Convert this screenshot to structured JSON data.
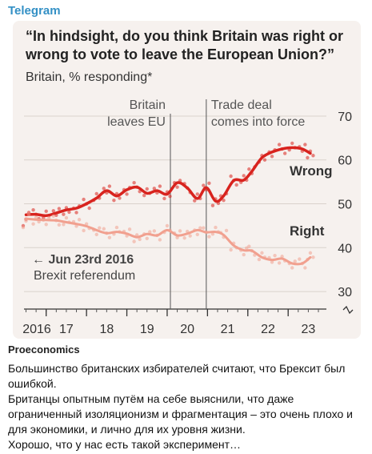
{
  "app": {
    "channel_label": "Telegram"
  },
  "chart_card": {
    "title_line1": "“In hindsight, do you think Britain was right or",
    "title_line2": "wrong to vote to leave the European Union?”",
    "subtitle": "Britain, % responding*"
  },
  "chart_data": {
    "type": "line",
    "title": "“In hindsight, do you think Britain was right or wrong to vote to leave the European Union?”",
    "subtitle": "Britain, % responding*",
    "x_tick_labels": [
      "2016",
      "17",
      "18",
      "19",
      "20",
      "21",
      "22",
      "23"
    ],
    "x_ticks_years": [
      2016,
      2017,
      2018,
      2019,
      2020,
      2021,
      2022,
      2023
    ],
    "xlim": [
      2016.45,
      2023.75
    ],
    "y_ticks": [
      30,
      40,
      50,
      60,
      70
    ],
    "ylim": [
      26,
      72
    ],
    "annotations": [
      {
        "id": "brexit_leave",
        "x": 2020.08,
        "lines": [
          "Britain",
          "leaves EU"
        ]
      },
      {
        "id": "trade_deal",
        "x": 2020.97,
        "lines": [
          "Trade deal",
          "comes into force"
        ]
      }
    ],
    "referendum_note": {
      "line1": "← Jun 23rd 2016",
      "line2": "Brexit referendum"
    },
    "series": [
      {
        "name": "Wrong",
        "color": "#d8231e",
        "points": [
          [
            2016.5,
            47.5
          ],
          [
            2016.75,
            47.6
          ],
          [
            2017.0,
            47.3
          ],
          [
            2017.25,
            47.9
          ],
          [
            2017.5,
            48.6
          ],
          [
            2017.75,
            49.0
          ],
          [
            2018.0,
            50.0
          ],
          [
            2018.25,
            51.3
          ],
          [
            2018.5,
            53.0
          ],
          [
            2018.75,
            51.8
          ],
          [
            2019.0,
            53.2
          ],
          [
            2019.25,
            53.8
          ],
          [
            2019.5,
            52.4
          ],
          [
            2019.75,
            53.0
          ],
          [
            2020.0,
            52.2
          ],
          [
            2020.25,
            54.8
          ],
          [
            2020.5,
            53.6
          ],
          [
            2020.75,
            51.2
          ],
          [
            2020.97,
            53.7
          ],
          [
            2021.2,
            50.6
          ],
          [
            2021.4,
            51.8
          ],
          [
            2021.65,
            55.3
          ],
          [
            2021.9,
            55.4
          ],
          [
            2022.1,
            57.4
          ],
          [
            2022.35,
            60.5
          ],
          [
            2022.6,
            61.8
          ],
          [
            2022.85,
            62.5
          ],
          [
            2023.1,
            62.8
          ],
          [
            2023.35,
            62.5
          ],
          [
            2023.55,
            61.5
          ]
        ]
      },
      {
        "name": "Right",
        "color": "#f1a08f",
        "points": [
          [
            2016.5,
            46.6
          ],
          [
            2016.75,
            46.4
          ],
          [
            2017.0,
            46.3
          ],
          [
            2017.25,
            46.2
          ],
          [
            2017.5,
            45.8
          ],
          [
            2017.75,
            45.4
          ],
          [
            2018.0,
            44.9
          ],
          [
            2018.25,
            44.0
          ],
          [
            2018.5,
            43.3
          ],
          [
            2018.75,
            43.6
          ],
          [
            2019.0,
            43.2
          ],
          [
            2019.25,
            42.4
          ],
          [
            2019.5,
            43.1
          ],
          [
            2019.75,
            42.8
          ],
          [
            2020.0,
            44.0
          ],
          [
            2020.25,
            42.8
          ],
          [
            2020.5,
            43.2
          ],
          [
            2020.75,
            44.0
          ],
          [
            2020.97,
            43.5
          ],
          [
            2021.2,
            43.6
          ],
          [
            2021.4,
            42.9
          ],
          [
            2021.65,
            40.5
          ],
          [
            2021.9,
            39.4
          ],
          [
            2022.1,
            39.3
          ],
          [
            2022.35,
            37.8
          ],
          [
            2022.6,
            37.2
          ],
          [
            2022.85,
            37.5
          ],
          [
            2023.1,
            36.4
          ],
          [
            2023.35,
            36.4
          ],
          [
            2023.55,
            37.8
          ]
        ]
      }
    ]
  },
  "post": {
    "source_label": "Proeconomics",
    "paragraphs": [
      "Большинство британских избирателей считают, что Брексит был ошибкой.",
      "Британцы опытным путём на себе выяснили, что даже ограниченный изоляционизм и фрагментация – это очень плохо и для экономики, и лично для их уровня жизни.",
      "Хорошо, что у нас есть такой эксперимент…"
    ]
  }
}
